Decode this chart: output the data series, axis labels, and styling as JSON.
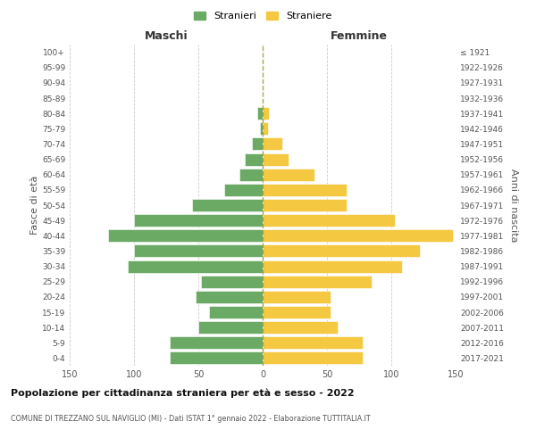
{
  "age_groups": [
    "0-4",
    "5-9",
    "10-14",
    "15-19",
    "20-24",
    "25-29",
    "30-34",
    "35-39",
    "40-44",
    "45-49",
    "50-54",
    "55-59",
    "60-64",
    "65-69",
    "70-74",
    "75-79",
    "80-84",
    "85-89",
    "90-94",
    "95-99",
    "100+"
  ],
  "birth_years": [
    "2017-2021",
    "2012-2016",
    "2007-2011",
    "2002-2006",
    "1997-2001",
    "1992-1996",
    "1987-1991",
    "1982-1986",
    "1977-1981",
    "1972-1976",
    "1967-1971",
    "1962-1966",
    "1957-1961",
    "1952-1956",
    "1947-1951",
    "1942-1946",
    "1937-1941",
    "1932-1936",
    "1927-1931",
    "1922-1926",
    "≤ 1921"
  ],
  "males": [
    72,
    72,
    50,
    42,
    52,
    48,
    105,
    100,
    120,
    100,
    55,
    30,
    18,
    14,
    8,
    2,
    4,
    0,
    0,
    0,
    0
  ],
  "females": [
    78,
    78,
    58,
    53,
    53,
    85,
    108,
    122,
    148,
    103,
    65,
    65,
    40,
    20,
    15,
    4,
    5,
    0,
    0,
    0,
    0
  ],
  "male_color": "#6aaa64",
  "female_color": "#f5c842",
  "title": "Popolazione per cittadinanza straniera per età e sesso - 2022",
  "subtitle": "COMUNE DI TREZZANO SUL NAVIGLIO (MI) - Dati ISTAT 1° gennaio 2022 - Elaborazione TUTTITALIA.IT",
  "xlabel_left": "Maschi",
  "xlabel_right": "Femmine",
  "ylabel_left": "Fasce di età",
  "ylabel_right": "Anni di nascita",
  "legend_male": "Stranieri",
  "legend_female": "Straniere",
  "xlim": 150,
  "background_color": "#ffffff",
  "grid_color": "#cccccc"
}
